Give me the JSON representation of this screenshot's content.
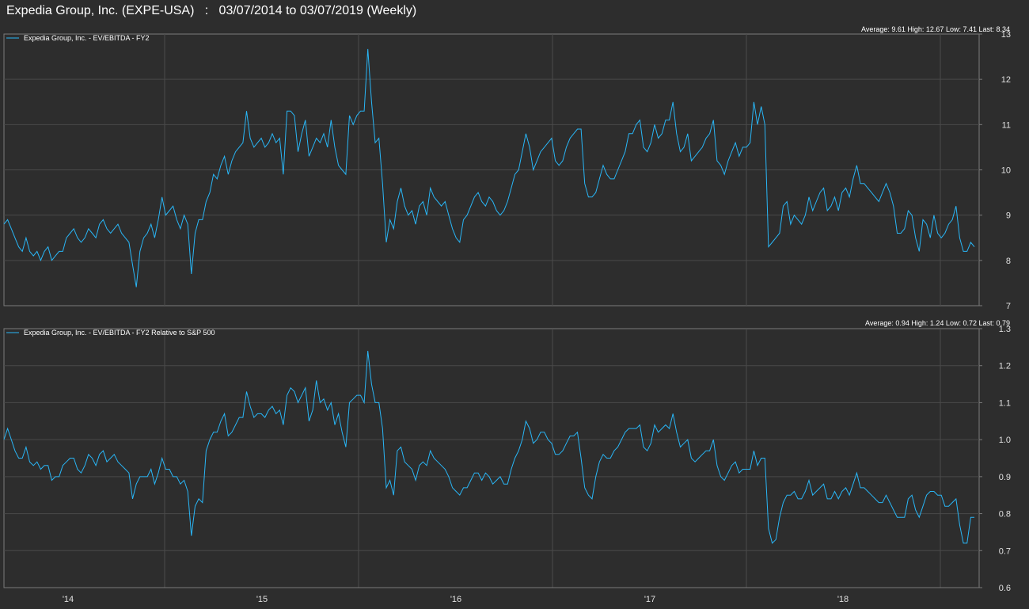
{
  "header": {
    "title": "Expedia Group, Inc. (EXPE-USA)   :   03/07/2014 to 03/07/2019 (Weekly)"
  },
  "colors": {
    "background": "#2d2d2d",
    "panel_border": "#7a7a7a",
    "grid": "#4a4a4a",
    "series": "#29b6f6"
  },
  "x_axis": {
    "ticks": [
      "'14",
      "'15",
      "'16",
      "'17",
      "'18"
    ]
  },
  "chart_data": [
    {
      "type": "line",
      "legend": "Expedia Group, Inc. - EV/EBITDA - FY2",
      "stats": "Average: 9.61  High: 12.67  Low: 7.41  Last: 8.34",
      "yticks": [
        "7",
        "8",
        "9",
        "10",
        "11",
        "12",
        "13"
      ],
      "ylim": [
        7,
        13
      ],
      "grid": true,
      "x_start": "2014-03-07",
      "x_end": "2019-03-07",
      "series": [
        {
          "name": "Expedia Group, Inc. - EV/EBITDA - FY2",
          "values": [
            8.8,
            8.9,
            8.7,
            8.5,
            8.3,
            8.2,
            8.5,
            8.2,
            8.1,
            8.2,
            8.0,
            8.2,
            8.3,
            8.0,
            8.1,
            8.2,
            8.2,
            8.5,
            8.6,
            8.7,
            8.5,
            8.4,
            8.5,
            8.7,
            8.6,
            8.5,
            8.8,
            8.9,
            8.7,
            8.6,
            8.7,
            8.8,
            8.6,
            8.5,
            8.4,
            7.9,
            7.41,
            8.2,
            8.5,
            8.6,
            8.8,
            8.5,
            8.9,
            9.4,
            9.0,
            9.1,
            9.2,
            8.9,
            8.7,
            9.0,
            8.8,
            7.7,
            8.6,
            8.9,
            8.9,
            9.3,
            9.5,
            9.9,
            9.8,
            10.1,
            10.3,
            9.9,
            10.2,
            10.4,
            10.5,
            10.6,
            11.3,
            10.7,
            10.5,
            10.6,
            10.7,
            10.5,
            10.6,
            10.8,
            10.6,
            10.7,
            9.9,
            11.3,
            11.3,
            11.2,
            10.4,
            10.8,
            11.1,
            10.3,
            10.5,
            10.7,
            10.6,
            10.8,
            10.5,
            11.1,
            10.5,
            10.1,
            10.0,
            9.9,
            11.2,
            11.0,
            11.2,
            11.3,
            11.3,
            12.67,
            11.5,
            10.6,
            10.7,
            9.7,
            8.4,
            8.9,
            8.7,
            9.3,
            9.6,
            9.2,
            9.0,
            9.1,
            8.8,
            9.2,
            9.3,
            9.0,
            9.6,
            9.4,
            9.3,
            9.2,
            9.3,
            9.0,
            8.7,
            8.5,
            8.4,
            8.9,
            9.0,
            9.2,
            9.4,
            9.5,
            9.3,
            9.2,
            9.4,
            9.3,
            9.1,
            9.0,
            9.1,
            9.3,
            9.6,
            9.9,
            10.0,
            10.4,
            10.8,
            10.5,
            10.0,
            10.2,
            10.4,
            10.5,
            10.6,
            10.7,
            10.2,
            10.1,
            10.2,
            10.5,
            10.7,
            10.8,
            10.9,
            10.9,
            9.7,
            9.4,
            9.4,
            9.5,
            9.8,
            10.1,
            9.9,
            9.8,
            9.8,
            10.0,
            10.2,
            10.4,
            10.8,
            10.8,
            11.0,
            11.1,
            10.5,
            10.4,
            10.6,
            11.0,
            10.7,
            10.8,
            11.1,
            11.1,
            11.5,
            10.8,
            10.4,
            10.5,
            10.8,
            10.2,
            10.3,
            10.4,
            10.5,
            10.7,
            10.8,
            11.1,
            10.2,
            10.1,
            9.9,
            10.2,
            10.4,
            10.6,
            10.3,
            10.5,
            10.5,
            10.6,
            11.5,
            11.0,
            11.4,
            11.0,
            8.3,
            8.4,
            8.5,
            8.6,
            9.2,
            9.3,
            8.8,
            9.0,
            8.9,
            8.8,
            9.0,
            9.4,
            9.1,
            9.3,
            9.5,
            9.6,
            9.1,
            9.2,
            9.4,
            9.1,
            9.5,
            9.6,
            9.4,
            9.8,
            10.1,
            9.7,
            9.7,
            9.6,
            9.5,
            9.4,
            9.3,
            9.5,
            9.7,
            9.5,
            9.2,
            8.6,
            8.6,
            8.7,
            9.1,
            9.0,
            8.5,
            8.2,
            8.9,
            8.8,
            8.5,
            9.0,
            8.6,
            8.5,
            8.6,
            8.8,
            8.9,
            9.2,
            8.5,
            8.2,
            8.2,
            8.4,
            8.3
          ]
        }
      ]
    },
    {
      "type": "line",
      "legend": "Expedia Group, Inc. - EV/EBITDA - FY2 Relative to S&P 500",
      "stats": "Average: 0.94  High: 1.24  Low: 0.72  Last: 0.79",
      "yticks": [
        "0.6",
        "0.7",
        "0.8",
        "0.9",
        "1.0",
        "1.1",
        "1.2",
        "1.3"
      ],
      "ylim": [
        0.6,
        1.3
      ],
      "grid": true,
      "x_start": "2014-03-07",
      "x_end": "2019-03-07",
      "series": [
        {
          "name": "Expedia Group, Inc. - EV/EBITDA - FY2 Relative to S&P 500",
          "values": [
            1.0,
            1.03,
            1.0,
            0.97,
            0.95,
            0.95,
            0.98,
            0.94,
            0.93,
            0.94,
            0.92,
            0.93,
            0.93,
            0.89,
            0.9,
            0.9,
            0.93,
            0.94,
            0.95,
            0.95,
            0.92,
            0.91,
            0.93,
            0.96,
            0.95,
            0.93,
            0.96,
            0.97,
            0.94,
            0.95,
            0.96,
            0.94,
            0.93,
            0.92,
            0.91,
            0.84,
            0.88,
            0.9,
            0.9,
            0.9,
            0.92,
            0.88,
            0.91,
            0.95,
            0.92,
            0.92,
            0.9,
            0.9,
            0.88,
            0.89,
            0.86,
            0.74,
            0.82,
            0.84,
            0.83,
            0.97,
            1.0,
            1.02,
            1.02,
            1.05,
            1.07,
            1.01,
            1.02,
            1.04,
            1.06,
            1.06,
            1.13,
            1.09,
            1.06,
            1.07,
            1.07,
            1.06,
            1.08,
            1.09,
            1.07,
            1.08,
            1.04,
            1.12,
            1.14,
            1.13,
            1.1,
            1.12,
            1.14,
            1.05,
            1.08,
            1.16,
            1.1,
            1.11,
            1.08,
            1.1,
            1.04,
            1.07,
            1.02,
            0.98,
            1.1,
            1.11,
            1.12,
            1.12,
            1.1,
            1.24,
            1.15,
            1.1,
            1.1,
            1.03,
            0.87,
            0.89,
            0.85,
            0.97,
            0.98,
            0.94,
            0.93,
            0.92,
            0.89,
            0.93,
            0.94,
            0.93,
            0.97,
            0.95,
            0.94,
            0.93,
            0.92,
            0.9,
            0.87,
            0.86,
            0.85,
            0.87,
            0.87,
            0.89,
            0.91,
            0.91,
            0.89,
            0.91,
            0.9,
            0.88,
            0.89,
            0.9,
            0.88,
            0.88,
            0.92,
            0.95,
            0.97,
            1.0,
            1.05,
            1.03,
            0.99,
            1.0,
            1.02,
            1.02,
            1.0,
            0.99,
            0.96,
            0.96,
            0.97,
            0.99,
            1.01,
            1.01,
            1.02,
            0.95,
            0.87,
            0.85,
            0.84,
            0.9,
            0.94,
            0.96,
            0.95,
            0.95,
            0.97,
            0.98,
            1.0,
            1.02,
            1.03,
            1.03,
            1.03,
            1.04,
            0.98,
            0.97,
            0.99,
            1.04,
            1.02,
            1.03,
            1.04,
            1.03,
            1.07,
            1.02,
            0.98,
            0.99,
            1.0,
            0.95,
            0.94,
            0.95,
            0.96,
            0.97,
            0.97,
            1.0,
            0.93,
            0.9,
            0.89,
            0.91,
            0.93,
            0.94,
            0.91,
            0.92,
            0.92,
            0.92,
            0.97,
            0.93,
            0.95,
            0.95,
            0.76,
            0.72,
            0.73,
            0.79,
            0.83,
            0.85,
            0.85,
            0.86,
            0.84,
            0.84,
            0.86,
            0.89,
            0.85,
            0.86,
            0.87,
            0.88,
            0.84,
            0.84,
            0.86,
            0.84,
            0.86,
            0.87,
            0.85,
            0.88,
            0.91,
            0.87,
            0.87,
            0.86,
            0.85,
            0.84,
            0.83,
            0.83,
            0.85,
            0.83,
            0.81,
            0.79,
            0.79,
            0.79,
            0.84,
            0.85,
            0.81,
            0.79,
            0.82,
            0.85,
            0.86,
            0.86,
            0.85,
            0.85,
            0.82,
            0.82,
            0.83,
            0.84,
            0.77,
            0.72,
            0.72,
            0.79,
            0.79
          ]
        }
      ]
    }
  ]
}
